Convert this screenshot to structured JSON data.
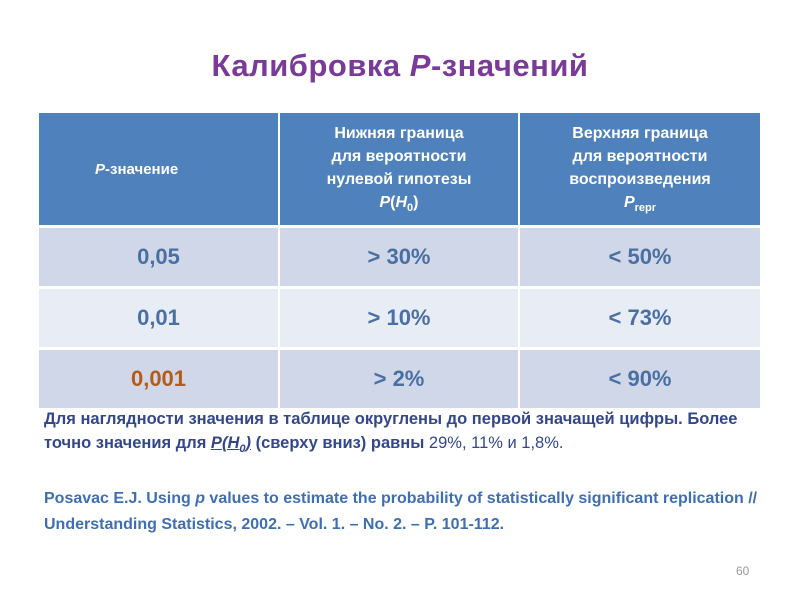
{
  "slide": {
    "title_italic": "P",
    "title_rest": "-значений",
    "title_prefix": "Калибровка ",
    "page_number": "60"
  },
  "table": {
    "headers": {
      "col1_italic": "P",
      "col1_rest": "-значение",
      "col2_lines": [
        "Нижняя граница",
        "для вероятности",
        "нулевой гипотезы"
      ],
      "col2_formula_p": "P",
      "col2_formula_h": "H",
      "col2_formula_sub": "0",
      "col3_lines": [
        "Верхняя граница",
        "для вероятности",
        "воспроизведения"
      ],
      "col3_formula_p": "P",
      "col3_formula_sub": "repr"
    },
    "rows": [
      {
        "p": "0,05",
        "lower": "> 30%",
        "upper": "< 50%"
      },
      {
        "p": "0,01",
        "lower": "> 10%",
        "upper": "< 73%"
      },
      {
        "p": "0,001",
        "lower": "> 2%",
        "upper": "< 90%"
      }
    ]
  },
  "note": {
    "part1": "Для наглядности значения в таблице округлены до первой значащей цифры. Более точно значения для ",
    "formula_p": "P",
    "formula_h": "H",
    "formula_sub": "0",
    "part2": " (сверху вниз) равны ",
    "values": "29%, 11% и 1,8%."
  },
  "reference": {
    "pre": "Posavac E.J. Using ",
    "italic": "p",
    "post": " values to estimate the probability of statistically significant replication // Understanding Statistics, 2002. – Vol. 1. – No. 2. – P. 101-112."
  },
  "colors": {
    "title": "#7a3a98",
    "header_bg": "#4f81bd",
    "row_dark": "#cfd7e8",
    "row_light": "#e8ecf4",
    "cell_text": "#4a6fa3",
    "highlight_text": "#b55a18",
    "note_text": "#33478a",
    "ref_text": "#3e6fb3"
  }
}
